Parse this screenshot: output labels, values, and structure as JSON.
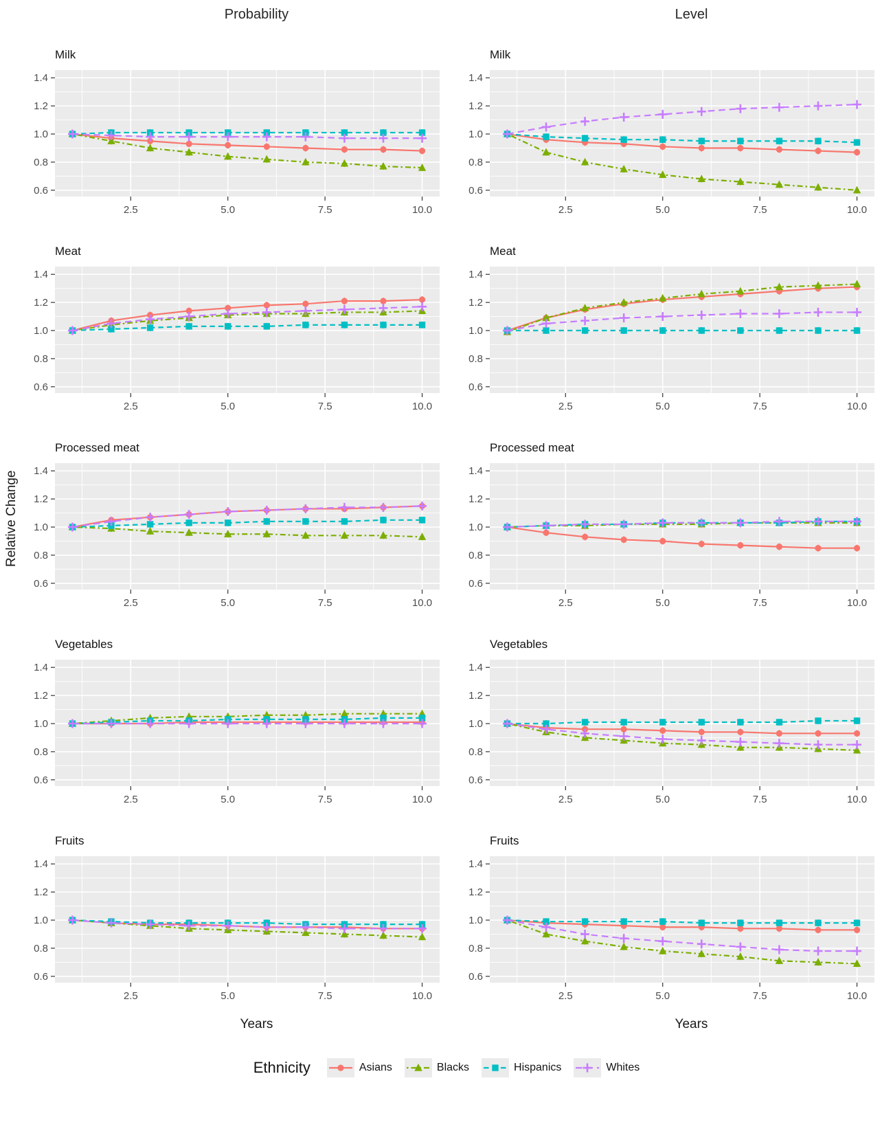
{
  "page": {
    "column_titles": [
      "Probability",
      "Level"
    ],
    "y_axis_title": "Relative Change",
    "x_axis_title": "Years",
    "legend_title": "Ethnicity"
  },
  "chart_data": {
    "type": "line",
    "title": "",
    "xlabel": "Years",
    "ylabel": "Relative Change",
    "facet_columns": [
      "Probability",
      "Level"
    ],
    "facet_rows": [
      "Milk",
      "Meat",
      "Processed meat",
      "Vegetables",
      "Fruits"
    ],
    "x": [
      1,
      2,
      3,
      4,
      5,
      6,
      7,
      8,
      9,
      10
    ],
    "xlim": [
      0.55,
      10.45
    ],
    "ylim": [
      0.555,
      1.455
    ],
    "x_ticks": [
      {
        "value": 2.5,
        "label": "2.5"
      },
      {
        "value": 5.0,
        "label": "5.0"
      },
      {
        "value": 7.5,
        "label": "7.5"
      },
      {
        "value": 10.0,
        "label": "10.0"
      }
    ],
    "y_ticks": [
      {
        "value": 0.6,
        "label": "0.6"
      },
      {
        "value": 0.8,
        "label": "0.8"
      },
      {
        "value": 1.0,
        "label": "1.0"
      },
      {
        "value": 1.2,
        "label": "1.2"
      },
      {
        "value": 1.4,
        "label": "1.4"
      }
    ],
    "grid": "on",
    "panel_background": "#EBEBEB",
    "grid_color": "#FFFFFF",
    "axis_text_color": "#4D4D4D",
    "legend_position": "bottom",
    "legend_title": "Ethnicity",
    "series_meta": [
      {
        "name": "Asians",
        "color": "#F8766D",
        "marker": "circle",
        "linetype": "solid"
      },
      {
        "name": "Blacks",
        "color": "#7CAE00",
        "marker": "triangle",
        "linetype": "dotdash"
      },
      {
        "name": "Hispanics",
        "color": "#00BFC4",
        "marker": "square",
        "linetype": "dashed"
      },
      {
        "name": "Whites",
        "color": "#C77CFF",
        "marker": "plus",
        "linetype": "longdash"
      }
    ],
    "facets": [
      {
        "row": "Milk",
        "column": "Probability",
        "series": {
          "Asians": [
            1.0,
            0.97,
            0.95,
            0.93,
            0.92,
            0.91,
            0.9,
            0.89,
            0.89,
            0.88
          ],
          "Blacks": [
            1.0,
            0.95,
            0.9,
            0.87,
            0.84,
            0.82,
            0.8,
            0.79,
            0.77,
            0.76
          ],
          "Hispanics": [
            1.0,
            1.01,
            1.01,
            1.01,
            1.01,
            1.01,
            1.01,
            1.01,
            1.01,
            1.01
          ],
          "Whites": [
            1.0,
            0.99,
            0.98,
            0.98,
            0.98,
            0.98,
            0.98,
            0.97,
            0.97,
            0.97
          ]
        }
      },
      {
        "row": "Milk",
        "column": "Level",
        "series": {
          "Asians": [
            1.0,
            0.96,
            0.94,
            0.93,
            0.91,
            0.9,
            0.9,
            0.89,
            0.88,
            0.87
          ],
          "Blacks": [
            1.0,
            0.87,
            0.8,
            0.75,
            0.71,
            0.68,
            0.66,
            0.64,
            0.62,
            0.6
          ],
          "Hispanics": [
            1.0,
            0.98,
            0.97,
            0.96,
            0.96,
            0.95,
            0.95,
            0.95,
            0.95,
            0.94
          ],
          "Whites": [
            1.0,
            1.05,
            1.09,
            1.12,
            1.14,
            1.16,
            1.18,
            1.19,
            1.2,
            1.21
          ]
        }
      },
      {
        "row": "Meat",
        "column": "Probability",
        "series": {
          "Asians": [
            1.0,
            1.07,
            1.11,
            1.14,
            1.16,
            1.18,
            1.19,
            1.21,
            1.21,
            1.22
          ],
          "Blacks": [
            1.0,
            1.04,
            1.07,
            1.09,
            1.11,
            1.12,
            1.12,
            1.13,
            1.13,
            1.14
          ],
          "Hispanics": [
            1.0,
            1.01,
            1.02,
            1.03,
            1.03,
            1.03,
            1.04,
            1.04,
            1.04,
            1.04
          ],
          "Whites": [
            1.0,
            1.05,
            1.08,
            1.1,
            1.12,
            1.13,
            1.14,
            1.15,
            1.16,
            1.17
          ]
        }
      },
      {
        "row": "Meat",
        "column": "Level",
        "series": {
          "Asians": [
            1.0,
            1.09,
            1.15,
            1.19,
            1.22,
            1.24,
            1.26,
            1.28,
            1.3,
            1.31
          ],
          "Blacks": [
            0.99,
            1.09,
            1.16,
            1.2,
            1.23,
            1.26,
            1.28,
            1.31,
            1.32,
            1.33
          ],
          "Hispanics": [
            1.0,
            1.0,
            1.0,
            1.0,
            1.0,
            1.0,
            1.0,
            1.0,
            1.0,
            1.0
          ],
          "Whites": [
            1.0,
            1.05,
            1.07,
            1.09,
            1.1,
            1.11,
            1.12,
            1.12,
            1.13,
            1.13
          ]
        }
      },
      {
        "row": "Processed meat",
        "column": "Probability",
        "series": {
          "Asians": [
            1.0,
            1.05,
            1.07,
            1.09,
            1.11,
            1.12,
            1.13,
            1.13,
            1.14,
            1.15
          ],
          "Blacks": [
            1.0,
            0.99,
            0.97,
            0.96,
            0.95,
            0.95,
            0.94,
            0.94,
            0.94,
            0.93
          ],
          "Hispanics": [
            1.0,
            1.01,
            1.02,
            1.03,
            1.03,
            1.04,
            1.04,
            1.04,
            1.05,
            1.05
          ],
          "Whites": [
            1.0,
            1.04,
            1.07,
            1.09,
            1.11,
            1.12,
            1.13,
            1.14,
            1.14,
            1.15
          ]
        }
      },
      {
        "row": "Processed meat",
        "column": "Level",
        "series": {
          "Asians": [
            1.0,
            0.96,
            0.93,
            0.91,
            0.9,
            0.88,
            0.87,
            0.86,
            0.85,
            0.85
          ],
          "Blacks": [
            1.0,
            1.01,
            1.01,
            1.02,
            1.02,
            1.02,
            1.03,
            1.03,
            1.03,
            1.03
          ],
          "Hispanics": [
            1.0,
            1.01,
            1.02,
            1.02,
            1.03,
            1.03,
            1.03,
            1.03,
            1.04,
            1.04
          ],
          "Whites": [
            1.0,
            1.01,
            1.02,
            1.02,
            1.03,
            1.03,
            1.03,
            1.04,
            1.04,
            1.04
          ]
        }
      },
      {
        "row": "Vegetables",
        "column": "Probability",
        "series": {
          "Asians": [
            1.0,
            1.0,
            1.0,
            1.01,
            1.01,
            1.01,
            1.01,
            1.01,
            1.01,
            1.01
          ],
          "Blacks": [
            1.0,
            1.02,
            1.04,
            1.05,
            1.05,
            1.06,
            1.06,
            1.07,
            1.07,
            1.07
          ],
          "Hispanics": [
            1.0,
            1.01,
            1.02,
            1.02,
            1.03,
            1.03,
            1.03,
            1.03,
            1.04,
            1.04
          ],
          "Whites": [
            1.0,
            1.0,
            1.0,
            1.0,
            1.0,
            1.0,
            1.0,
            1.0,
            1.0,
            1.0
          ]
        }
      },
      {
        "row": "Vegetables",
        "column": "Level",
        "series": {
          "Asians": [
            1.0,
            0.97,
            0.96,
            0.96,
            0.95,
            0.94,
            0.94,
            0.93,
            0.93,
            0.93
          ],
          "Blacks": [
            1.0,
            0.94,
            0.9,
            0.88,
            0.86,
            0.85,
            0.83,
            0.83,
            0.82,
            0.81
          ],
          "Hispanics": [
            1.0,
            1.0,
            1.01,
            1.01,
            1.01,
            1.01,
            1.01,
            1.01,
            1.02,
            1.02
          ],
          "Whites": [
            1.0,
            0.96,
            0.93,
            0.91,
            0.89,
            0.88,
            0.87,
            0.86,
            0.85,
            0.85
          ]
        }
      },
      {
        "row": "Fruits",
        "column": "Probability",
        "series": {
          "Asians": [
            1.0,
            0.98,
            0.97,
            0.97,
            0.96,
            0.95,
            0.95,
            0.95,
            0.94,
            0.94
          ],
          "Blacks": [
            1.0,
            0.98,
            0.96,
            0.94,
            0.93,
            0.92,
            0.91,
            0.9,
            0.89,
            0.88
          ],
          "Hispanics": [
            1.0,
            0.99,
            0.98,
            0.98,
            0.98,
            0.98,
            0.97,
            0.97,
            0.97,
            0.97
          ],
          "Whites": [
            1.0,
            0.98,
            0.97,
            0.96,
            0.96,
            0.95,
            0.95,
            0.94,
            0.94,
            0.94
          ]
        }
      },
      {
        "row": "Fruits",
        "column": "Level",
        "series": {
          "Asians": [
            1.0,
            0.98,
            0.97,
            0.96,
            0.95,
            0.95,
            0.94,
            0.94,
            0.93,
            0.93
          ],
          "Blacks": [
            1.0,
            0.9,
            0.85,
            0.81,
            0.78,
            0.76,
            0.74,
            0.71,
            0.7,
            0.69
          ],
          "Hispanics": [
            1.0,
            0.99,
            0.99,
            0.99,
            0.99,
            0.98,
            0.98,
            0.98,
            0.98,
            0.98
          ],
          "Whites": [
            1.0,
            0.95,
            0.9,
            0.87,
            0.85,
            0.83,
            0.81,
            0.79,
            0.78,
            0.78
          ]
        }
      }
    ]
  }
}
